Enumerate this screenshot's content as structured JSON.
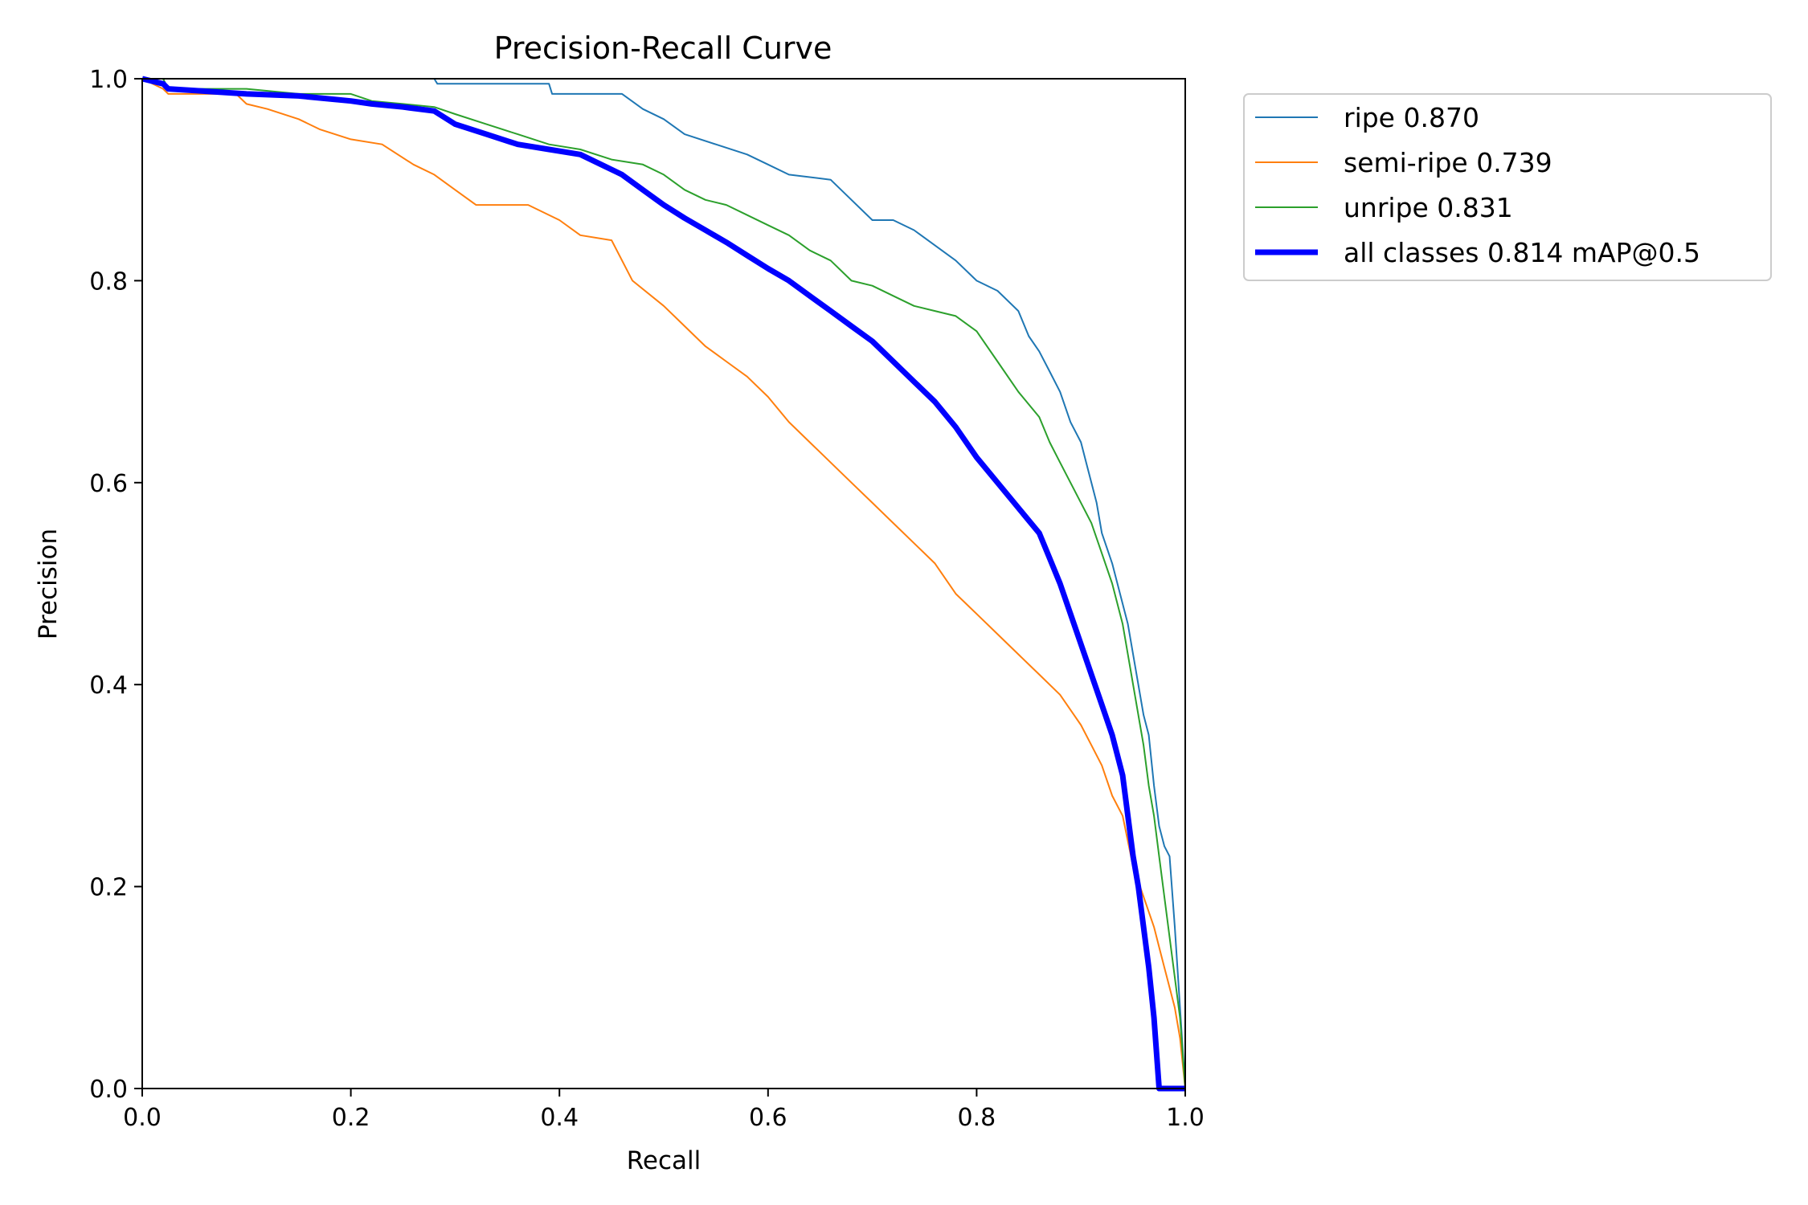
{
  "chart_data": {
    "type": "line",
    "title": "Precision-Recall Curve",
    "xlabel": "Recall",
    "ylabel": "Precision",
    "xlim": [
      0,
      1
    ],
    "ylim": [
      0,
      1
    ],
    "xticks": [
      "0.0",
      "0.2",
      "0.4",
      "0.6",
      "0.8",
      "1.0"
    ],
    "yticks": [
      "0.0",
      "0.2",
      "0.4",
      "0.6",
      "0.8",
      "1.0"
    ],
    "grid": false,
    "legend_position": "outside-top-right",
    "series": [
      {
        "name": "ripe 0.870",
        "color": "#1f77b4",
        "width": "thin",
        "x": [
          0,
          0.28,
          0.283,
          0.39,
          0.393,
          0.46,
          0.48,
          0.5,
          0.52,
          0.55,
          0.58,
          0.6,
          0.62,
          0.66,
          0.68,
          0.7,
          0.72,
          0.74,
          0.76,
          0.78,
          0.8,
          0.82,
          0.84,
          0.85,
          0.86,
          0.87,
          0.88,
          0.89,
          0.9,
          0.905,
          0.91,
          0.915,
          0.92,
          0.93,
          0.935,
          0.94,
          0.945,
          0.95,
          0.955,
          0.96,
          0.965,
          0.97,
          0.975,
          0.98,
          0.985,
          0.99,
          0.995,
          1.0
        ],
        "y": [
          1.0,
          1.0,
          0.995,
          0.995,
          0.985,
          0.985,
          0.97,
          0.96,
          0.945,
          0.935,
          0.925,
          0.915,
          0.905,
          0.9,
          0.88,
          0.86,
          0.86,
          0.85,
          0.835,
          0.82,
          0.8,
          0.79,
          0.77,
          0.745,
          0.73,
          0.71,
          0.69,
          0.66,
          0.64,
          0.62,
          0.6,
          0.58,
          0.55,
          0.52,
          0.5,
          0.48,
          0.46,
          0.43,
          0.4,
          0.37,
          0.35,
          0.3,
          0.26,
          0.24,
          0.23,
          0.16,
          0.08,
          0.0
        ]
      },
      {
        "name": "semi-ripe 0.739",
        "color": "#ff7f0e",
        "width": "thin",
        "x": [
          0,
          0.02,
          0.025,
          0.09,
          0.1,
          0.12,
          0.15,
          0.17,
          0.2,
          0.23,
          0.26,
          0.28,
          0.3,
          0.32,
          0.34,
          0.37,
          0.4,
          0.42,
          0.45,
          0.47,
          0.5,
          0.52,
          0.54,
          0.56,
          0.58,
          0.6,
          0.62,
          0.64,
          0.66,
          0.68,
          0.7,
          0.72,
          0.74,
          0.76,
          0.78,
          0.8,
          0.82,
          0.84,
          0.86,
          0.88,
          0.9,
          0.91,
          0.92,
          0.93,
          0.94,
          0.95,
          0.96,
          0.97,
          0.975,
          0.98,
          0.985,
          0.99,
          0.995,
          1.0
        ],
        "y": [
          1.0,
          0.99,
          0.985,
          0.985,
          0.975,
          0.97,
          0.96,
          0.95,
          0.94,
          0.935,
          0.915,
          0.905,
          0.89,
          0.875,
          0.875,
          0.875,
          0.86,
          0.845,
          0.84,
          0.8,
          0.775,
          0.755,
          0.735,
          0.72,
          0.705,
          0.685,
          0.66,
          0.64,
          0.62,
          0.6,
          0.58,
          0.56,
          0.54,
          0.52,
          0.49,
          0.47,
          0.45,
          0.43,
          0.41,
          0.39,
          0.36,
          0.34,
          0.32,
          0.29,
          0.27,
          0.22,
          0.19,
          0.16,
          0.14,
          0.12,
          0.1,
          0.08,
          0.05,
          0.0
        ]
      },
      {
        "name": "unripe 0.831",
        "color": "#2ca02c",
        "width": "thin",
        "x": [
          0,
          0.02,
          0.025,
          0.05,
          0.1,
          0.15,
          0.2,
          0.22,
          0.25,
          0.28,
          0.3,
          0.33,
          0.36,
          0.39,
          0.42,
          0.45,
          0.48,
          0.5,
          0.52,
          0.54,
          0.56,
          0.58,
          0.6,
          0.62,
          0.64,
          0.66,
          0.68,
          0.7,
          0.72,
          0.74,
          0.76,
          0.78,
          0.8,
          0.82,
          0.84,
          0.86,
          0.87,
          0.88,
          0.89,
          0.9,
          0.91,
          0.92,
          0.93,
          0.94,
          0.945,
          0.95,
          0.955,
          0.96,
          0.965,
          0.97,
          0.975,
          0.98,
          0.985,
          0.99,
          0.995,
          1.0
        ],
        "y": [
          1.0,
          1.0,
          0.99,
          0.99,
          0.99,
          0.985,
          0.985,
          0.978,
          0.975,
          0.972,
          0.965,
          0.955,
          0.945,
          0.935,
          0.93,
          0.92,
          0.915,
          0.905,
          0.89,
          0.88,
          0.875,
          0.865,
          0.855,
          0.845,
          0.83,
          0.82,
          0.8,
          0.795,
          0.785,
          0.775,
          0.77,
          0.765,
          0.75,
          0.72,
          0.69,
          0.665,
          0.64,
          0.62,
          0.6,
          0.58,
          0.56,
          0.53,
          0.5,
          0.46,
          0.43,
          0.4,
          0.37,
          0.34,
          0.3,
          0.27,
          0.23,
          0.19,
          0.15,
          0.11,
          0.07,
          0.0
        ]
      },
      {
        "name": "all classes 0.814 mAP@0.5",
        "color": "#0000ff",
        "width": "thick",
        "x": [
          0,
          0.02,
          0.025,
          0.1,
          0.15,
          0.2,
          0.22,
          0.25,
          0.28,
          0.3,
          0.33,
          0.36,
          0.39,
          0.42,
          0.44,
          0.46,
          0.48,
          0.5,
          0.52,
          0.54,
          0.56,
          0.58,
          0.6,
          0.62,
          0.64,
          0.66,
          0.68,
          0.7,
          0.72,
          0.74,
          0.76,
          0.78,
          0.8,
          0.82,
          0.84,
          0.86,
          0.87,
          0.88,
          0.89,
          0.9,
          0.91,
          0.92,
          0.93,
          0.94,
          0.945,
          0.95,
          0.955,
          0.96,
          0.965,
          0.97,
          0.975,
          0.98,
          0.985,
          0.99,
          0.995,
          1.0
        ],
        "y": [
          1.0,
          0.995,
          0.99,
          0.985,
          0.983,
          0.978,
          0.975,
          0.972,
          0.968,
          0.955,
          0.945,
          0.935,
          0.93,
          0.925,
          0.915,
          0.905,
          0.89,
          0.875,
          0.862,
          0.85,
          0.838,
          0.825,
          0.812,
          0.8,
          0.785,
          0.77,
          0.755,
          0.74,
          0.72,
          0.7,
          0.68,
          0.655,
          0.625,
          0.6,
          0.575,
          0.55,
          0.525,
          0.5,
          0.47,
          0.44,
          0.41,
          0.38,
          0.35,
          0.31,
          0.27,
          0.23,
          0.2,
          0.16,
          0.12,
          0.07,
          0.0,
          0.0,
          0.0,
          0.0,
          0.0,
          0.0
        ]
      }
    ]
  }
}
